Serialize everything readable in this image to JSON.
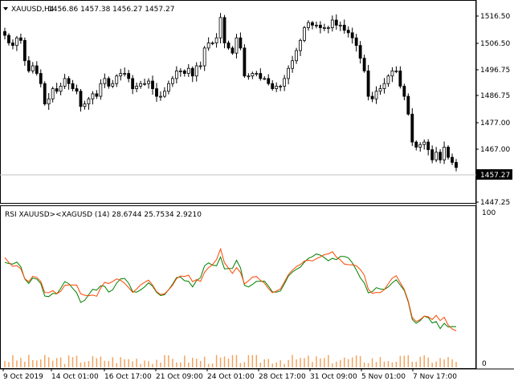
{
  "main_chart": {
    "symbol_title": "XAUUSD,H4",
    "ohlc": "1456.86 1457.38 1456.27 1457.27",
    "price_ticks": [
      "1516.50",
      "1506.50",
      "1496.75",
      "1486.75",
      "1477.00",
      "1467.00",
      "1447.25"
    ],
    "current_price": "1457.27"
  },
  "rsi_panel": {
    "title": "RSI XAUUSD><XAGUSD (14) 28.6744 25.7534 2.9210",
    "ticks": [
      "100",
      "0"
    ]
  },
  "time_axis": {
    "labels": [
      "9 Oct 2019",
      "14 Oct 01:00",
      "16 Oct 17:00",
      "21 Oct 09:00",
      "24 Oct 01:00",
      "28 Oct 17:00",
      "31 Oct 09:00",
      "5 Nov 01:00",
      "7 Nov 17:00"
    ]
  },
  "colors": {
    "candles": "#000000",
    "rsi_line_1": "#008000",
    "rsi_line_2": "#ff4500",
    "histogram": "#f4a460",
    "current_price_line": "#c0c0c0",
    "price_label_bg": "#000000",
    "price_label_text": "#ffffff"
  },
  "chart_data": {
    "type": "candlestick",
    "y_range": [
      1444,
      1521
    ],
    "close": [
      1509,
      1506,
      1505,
      1508,
      1507,
      1499,
      1495,
      1497,
      1494,
      1490,
      1482,
      1484,
      1488,
      1487,
      1489,
      1492,
      1490,
      1488,
      1487,
      1481,
      1482,
      1484,
      1486,
      1485,
      1490,
      1492,
      1489,
      1490,
      1493,
      1494,
      1494,
      1492,
      1488,
      1489,
      1490,
      1490,
      1491,
      1488,
      1485,
      1485,
      1487,
      1490,
      1492,
      1495,
      1495,
      1494,
      1496,
      1493,
      1497,
      1497,
      1504,
      1506,
      1506,
      1508,
      1516,
      1506,
      1504,
      1502,
      1508,
      1504,
      1493,
      1493,
      1494,
      1494,
      1492,
      1492,
      1490,
      1488,
      1489,
      1489,
      1492,
      1496,
      1499,
      1503,
      1507,
      1512,
      1514,
      1513,
      1513,
      1512,
      1512,
      1512,
      1515,
      1513,
      1513,
      1511,
      1510,
      1508,
      1505,
      1500,
      1495,
      1485,
      1484,
      1487,
      1488,
      1490,
      1493,
      1495,
      1495,
      1489,
      1485,
      1478,
      1467,
      1465,
      1466,
      1467,
      1464,
      1460,
      1463,
      1460,
      1465,
      1461,
      1459,
      1457
    ],
    "note": "candles rendered from close series; O/H/L estimated"
  }
}
